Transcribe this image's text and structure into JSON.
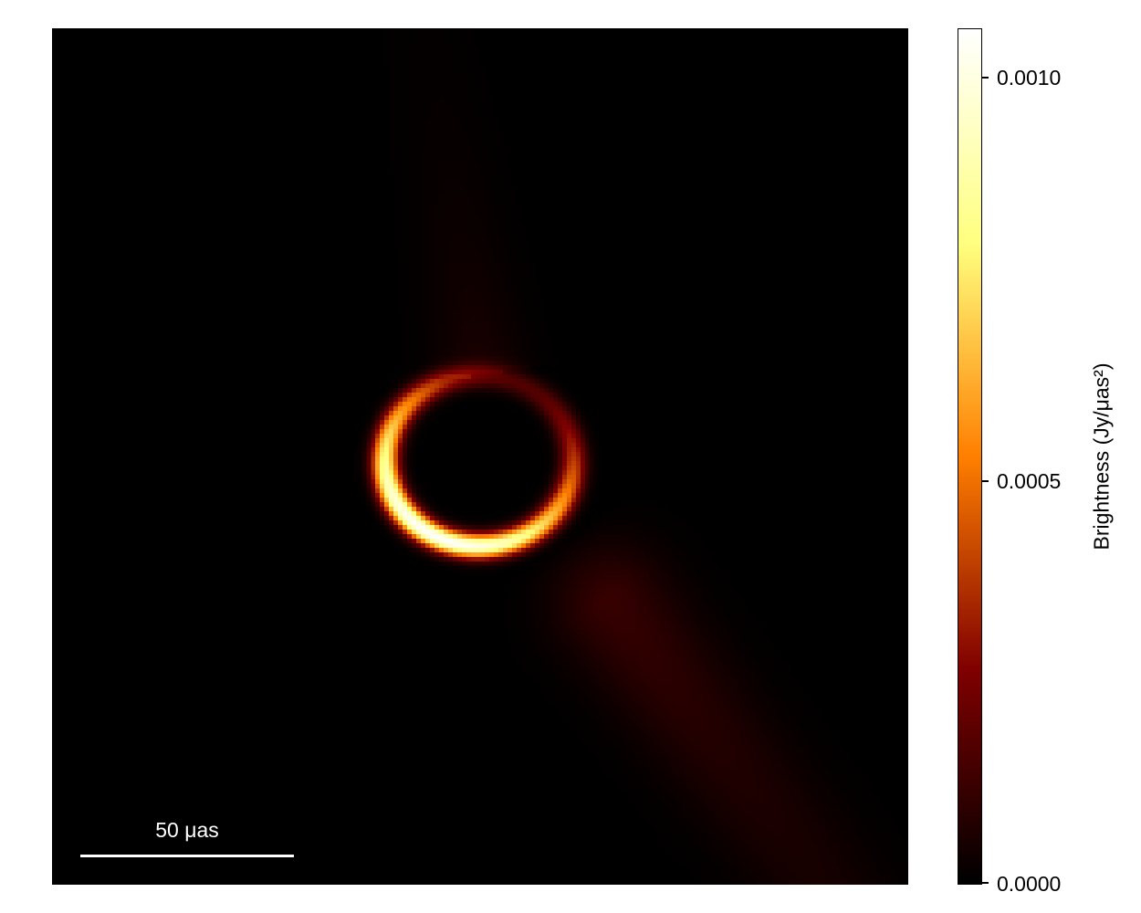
{
  "chart_data": {
    "type": "heatmap",
    "colormap": "afmhot",
    "colorbar": {
      "label": "Brightness (Jy/μas²)",
      "ticks": [
        0.0,
        0.0005,
        0.001
      ],
      "tick_labels": [
        "0.0000",
        "0.0005",
        "0.0010"
      ],
      "clim": [
        0.0,
        0.00106
      ],
      "position": "right"
    },
    "scalebar": {
      "label": "50 μas",
      "value": 50,
      "unit": "μas"
    },
    "background": "#000000"
  }
}
